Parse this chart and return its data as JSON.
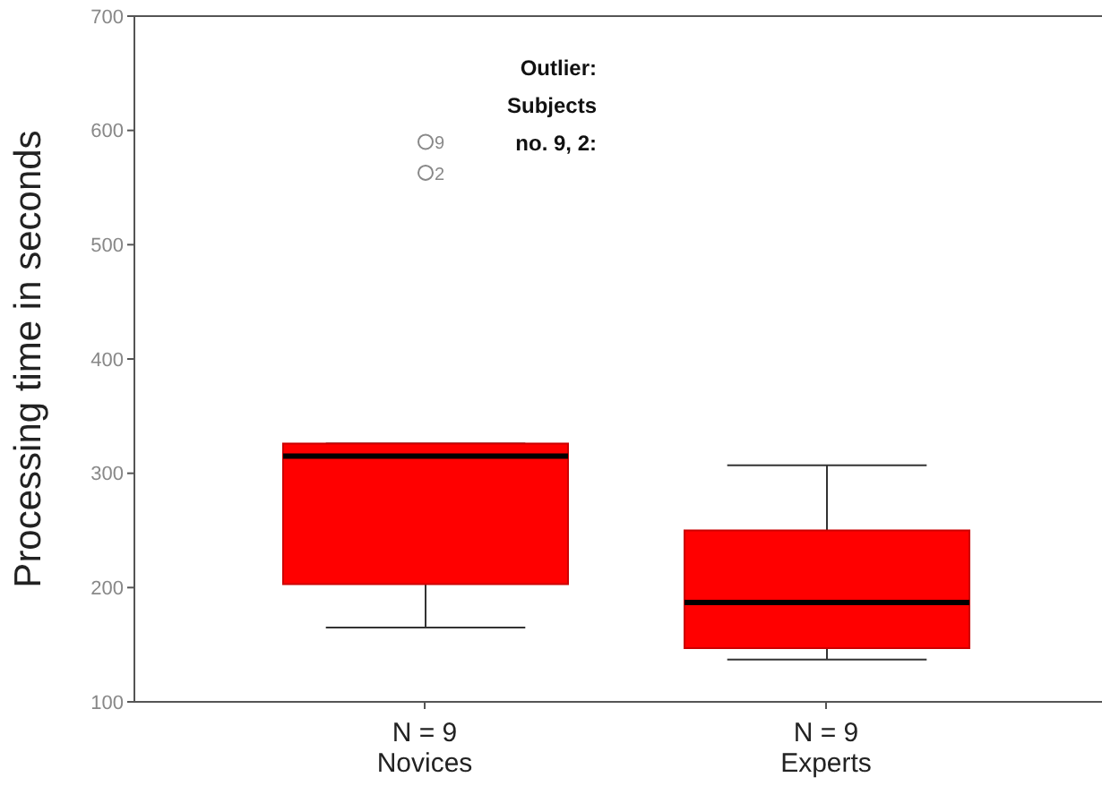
{
  "chart_data": {
    "type": "box",
    "ylabel": "Processing time in seconds",
    "categories": [
      "N = 9\nNovices",
      "N = 9\nExperts"
    ],
    "color": "#ff0000",
    "boxes": [
      {
        "low": 165,
        "q1": 203,
        "median": 315,
        "q3": 326,
        "high": 326,
        "outliers": [
          590,
          563
        ]
      },
      {
        "low": 137,
        "q1": 147,
        "median": 187,
        "q3": 250,
        "high": 307
      }
    ],
    "ylim": [
      100,
      700
    ],
    "yticks": [
      100,
      200,
      300,
      400,
      500,
      600,
      700
    ],
    "grid": false,
    "legend": false,
    "annotations": [
      "Outlier:\nSubjects\nno. 9, 2:",
      "9",
      "2"
    ]
  }
}
